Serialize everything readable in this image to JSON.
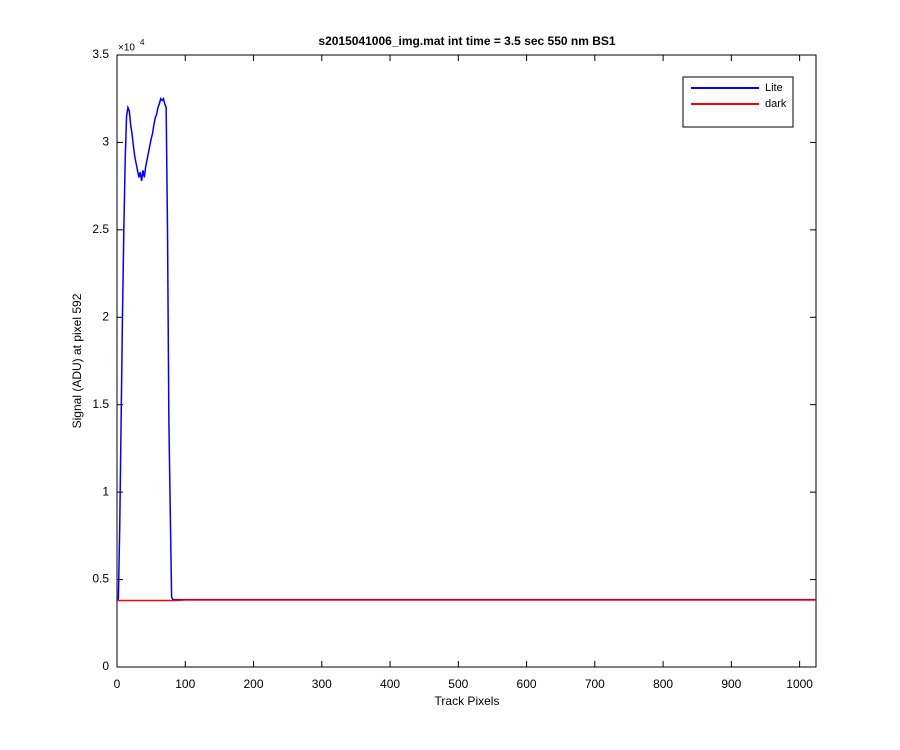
{
  "chart_data": {
    "type": "line",
    "title": "s2015041006_img.mat int time = 3.5 sec  550 nm BS1",
    "x_label": "Track Pixels",
    "y_label": "Signal (ADU) at pixel 592",
    "y_exponent_base": "×10",
    "y_exponent": "4",
    "xlim": [
      0,
      1024
    ],
    "ylim": [
      0,
      3.5
    ],
    "xticks": [
      0,
      100,
      200,
      300,
      400,
      500,
      600,
      700,
      800,
      900,
      1000
    ],
    "yticks": [
      0,
      0.5,
      1,
      1.5,
      2,
      2.5,
      3,
      3.5
    ],
    "legend": "upper right",
    "x": [
      0,
      2,
      4,
      6,
      8,
      10,
      12,
      14,
      16,
      18,
      20,
      22,
      24,
      26,
      28,
      30,
      32,
      34,
      36,
      38,
      40,
      42,
      44,
      46,
      48,
      50,
      52,
      54,
      56,
      58,
      60,
      62,
      64,
      66,
      68,
      70,
      72,
      74,
      76,
      78,
      80,
      82,
      84,
      100,
      200,
      300,
      400,
      500,
      600,
      700,
      800,
      900,
      1000,
      1024
    ],
    "series": [
      {
        "name": "Lite",
        "color": "#0000ff",
        "values": [
          0.38,
          0.39,
          0.8,
          1.4,
          2.0,
          2.5,
          2.9,
          3.15,
          3.2,
          3.18,
          3.1,
          3.05,
          2.98,
          2.92,
          2.88,
          2.84,
          2.8,
          2.83,
          2.78,
          2.84,
          2.8,
          2.86,
          2.9,
          2.94,
          2.98,
          3.02,
          3.05,
          3.1,
          3.14,
          3.16,
          3.2,
          3.22,
          3.25,
          3.24,
          3.25,
          3.22,
          3.2,
          2.5,
          1.4,
          0.9,
          0.4,
          0.385,
          0.385,
          0.385,
          0.385,
          0.385,
          0.385,
          0.385,
          0.385,
          0.385,
          0.385,
          0.385,
          0.385,
          0.385
        ]
      },
      {
        "name": "dark",
        "color": "#ff0000",
        "values": [
          0.38,
          0.38,
          0.38,
          0.38,
          0.38,
          0.38,
          0.38,
          0.38,
          0.38,
          0.38,
          0.38,
          0.38,
          0.38,
          0.38,
          0.38,
          0.38,
          0.38,
          0.38,
          0.38,
          0.38,
          0.38,
          0.38,
          0.38,
          0.38,
          0.38,
          0.38,
          0.38,
          0.38,
          0.38,
          0.38,
          0.38,
          0.38,
          0.38,
          0.38,
          0.38,
          0.38,
          0.38,
          0.38,
          0.38,
          0.38,
          0.38,
          0.38,
          0.38,
          0.383,
          0.383,
          0.383,
          0.383,
          0.383,
          0.383,
          0.383,
          0.383,
          0.383,
          0.383,
          0.383
        ]
      }
    ]
  }
}
